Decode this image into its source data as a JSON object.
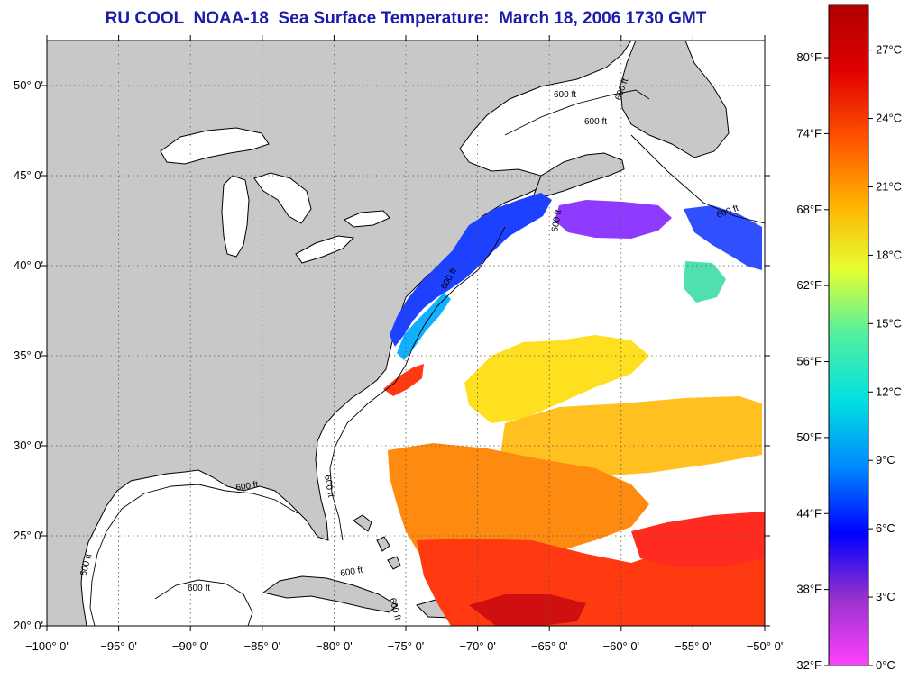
{
  "title": "RU COOL  NOAA-18  Sea Surface Temperature:  March 18, 2006 1730 GMT",
  "map": {
    "lon_range": [
      -100,
      -50
    ],
    "lat_range": [
      20,
      52.5
    ],
    "lon_ticks": [
      {
        "value": -100,
        "label": "−100° 0'"
      },
      {
        "value": -95,
        "label": "−95° 0'"
      },
      {
        "value": -90,
        "label": "−90° 0'"
      },
      {
        "value": -85,
        "label": "−85° 0'"
      },
      {
        "value": -80,
        "label": "−80° 0'"
      },
      {
        "value": -75,
        "label": "−75° 0'"
      },
      {
        "value": -70,
        "label": "−70° 0'"
      },
      {
        "value": -65,
        "label": "−65° 0'"
      },
      {
        "value": -60,
        "label": "−60° 0'"
      },
      {
        "value": -55,
        "label": "−55° 0'"
      },
      {
        "value": -50,
        "label": "−50° 0'"
      }
    ],
    "lat_ticks": [
      {
        "value": 20,
        "label": "20° 0'"
      },
      {
        "value": 25,
        "label": "25° 0'"
      },
      {
        "value": 30,
        "label": "30° 0'"
      },
      {
        "value": 35,
        "label": "35° 0'"
      },
      {
        "value": 40,
        "label": "40° 0'"
      },
      {
        "value": 45,
        "label": "45° 0'"
      },
      {
        "value": 50,
        "label": "50° 0'"
      }
    ],
    "contour_label": "600 ft",
    "colors": {
      "land": "#c8c8c8",
      "ocean": "#ffffff",
      "grid": "#555555",
      "title": "#1c1ca8"
    }
  },
  "colorbar": {
    "fahrenheit_ticks": [
      {
        "value": 32,
        "label": "32°F"
      },
      {
        "value": 38,
        "label": "38°F"
      },
      {
        "value": 44,
        "label": "44°F"
      },
      {
        "value": 50,
        "label": "50°F"
      },
      {
        "value": 56,
        "label": "56°F"
      },
      {
        "value": 62,
        "label": "62°F"
      },
      {
        "value": 68,
        "label": "68°F"
      },
      {
        "value": 74,
        "label": "74°F"
      },
      {
        "value": 80,
        "label": "80°F"
      }
    ],
    "celsius_ticks": [
      {
        "value": 0,
        "label": "0°C"
      },
      {
        "value": 3,
        "label": "3°C"
      },
      {
        "value": 6,
        "label": "6°C"
      },
      {
        "value": 9,
        "label": "9°C"
      },
      {
        "value": 12,
        "label": "12°C"
      },
      {
        "value": 15,
        "label": "15°C"
      },
      {
        "value": 18,
        "label": "18°C"
      },
      {
        "value": 21,
        "label": "21°C"
      },
      {
        "value": 24,
        "label": "24°C"
      },
      {
        "value": 27,
        "label": "27°C"
      }
    ],
    "celsius_range": [
      0,
      29
    ],
    "gradient": [
      "#ff40ff",
      "#9932cc",
      "#0000ff",
      "#0088ff",
      "#00e0e0",
      "#50f0a0",
      "#e6ff30",
      "#ffb000",
      "#ff5000",
      "#e00000",
      "#b00000"
    ]
  }
}
